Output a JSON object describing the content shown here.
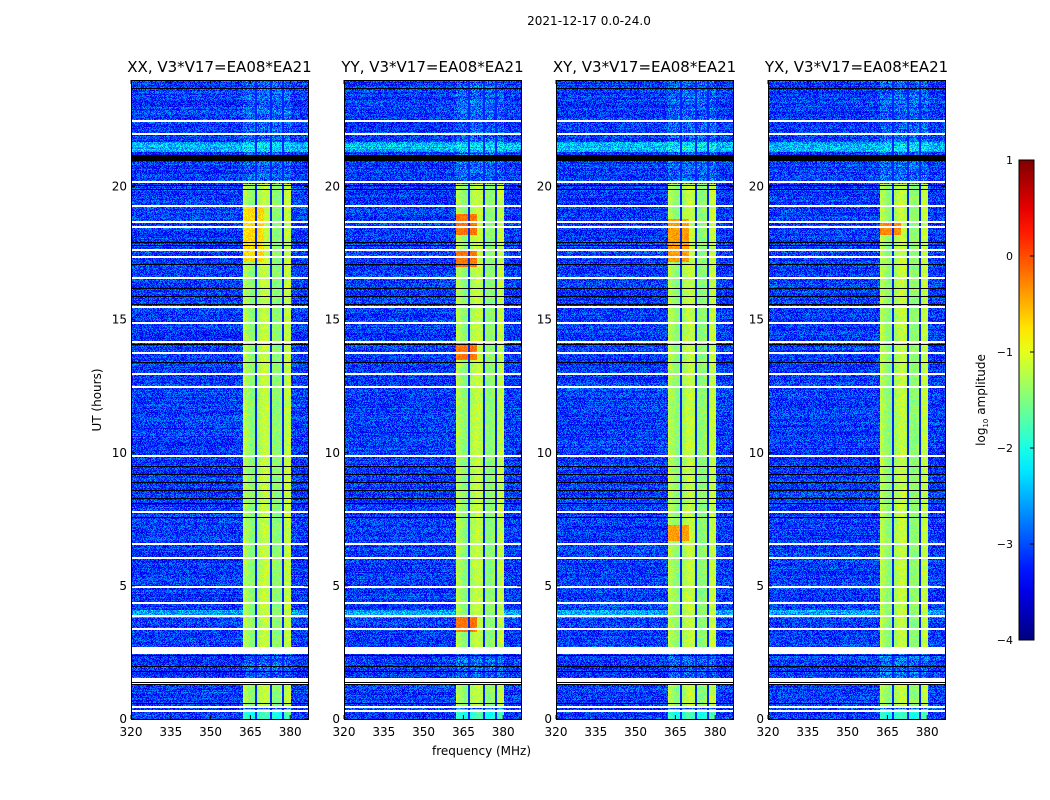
{
  "suptitle": "2021-12-17 0.0-24.0",
  "chart_data": {
    "type": "heatmap",
    "title": "2021-12-17 0.0-24.0",
    "xlabel": "frequency (MHz)",
    "ylabel": "UT (hours)",
    "xlim": [
      320,
      386.7
    ],
    "ylim": [
      0,
      24
    ],
    "xticks": [
      "320",
      "335",
      "350",
      "365",
      "380"
    ],
    "xtick_values": [
      320,
      335,
      350,
      365,
      380
    ],
    "yticks": [
      "0",
      "5",
      "10",
      "15",
      "20"
    ],
    "ytick_values": [
      0,
      5,
      10,
      15,
      20
    ],
    "panels": [
      {
        "title": "XX, V3*V17=EA08*EA21",
        "hot_spots_hours": [
          [
            17.2,
            19.2
          ]
        ],
        "hot_level": -0.7
      },
      {
        "title": "YY, V3*V17=EA08*EA21",
        "hot_spots_hours": [
          [
            18.2,
            19.0
          ],
          [
            17.0,
            17.6
          ],
          [
            13.5,
            14.2
          ],
          [
            3.3,
            3.9
          ]
        ],
        "hot_level": -0.2
      },
      {
        "title": "XY, V3*V17=EA08*EA21",
        "hot_spots_hours": [
          [
            17.2,
            18.8
          ],
          [
            6.7,
            7.3
          ]
        ],
        "hot_level": -0.4
      },
      {
        "title": "YX, V3*V17=EA08*EA21",
        "hot_spots_hours": [
          [
            18.2,
            18.7
          ]
        ],
        "hot_level": -0.3
      }
    ],
    "band_mhz": [
      362,
      380
    ],
    "band_gaps_mhz": [
      367,
      372.5,
      377
    ],
    "band_active_hours": [
      [
        0.0,
        0.4
      ],
      [
        0.5,
        1.3
      ],
      [
        2.7,
        7.8
      ],
      [
        7.8,
        9.9
      ],
      [
        9.9,
        20.1
      ]
    ],
    "background_level": -3.1,
    "band_level": -1.3,
    "flagged_white_hours": [
      0.5,
      0.35,
      1.45,
      1.55,
      2.6,
      2.7,
      3.4,
      3.9,
      4.4,
      5.0,
      6.1,
      6.6,
      7.8,
      9.9,
      12.5,
      13.0,
      13.8,
      14.2,
      14.9,
      15.5,
      16.6,
      17.4,
      17.65,
      18.5,
      18.7,
      19.3,
      20.2,
      22.0,
      22.5
    ],
    "flagged_black_hours": [
      0.6,
      1.3,
      1.4,
      1.8,
      2.0,
      2.4,
      7.6,
      8.1,
      8.3,
      8.6,
      8.9,
      9.2,
      9.5,
      13.4,
      14.1,
      15.6,
      15.9,
      16.2,
      17.1,
      17.8,
      17.9,
      19.9,
      20.05,
      21.0,
      21.1,
      21.2,
      23.7
    ],
    "colorbar": {
      "label": "log10 amplitude",
      "label_main": "log",
      "label_sub": "10",
      "label_rest": " amplitude",
      "range": [
        -4,
        1
      ],
      "ticks": [
        "1",
        "0",
        "−1",
        "−2",
        "−3",
        "−4"
      ],
      "tick_values": [
        1,
        0,
        -1,
        -2,
        -3,
        -4
      ],
      "colormap": "jet"
    }
  }
}
